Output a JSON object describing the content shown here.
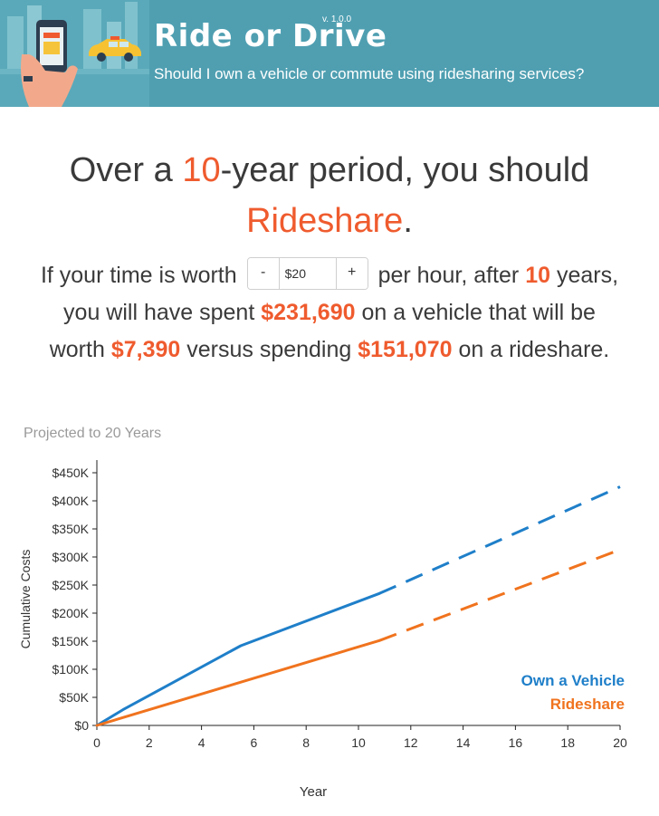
{
  "header": {
    "title": "Ride or Drive",
    "version": "v. 1.0.0",
    "subtitle": "Should I own a vehicle or commute using ridesharing services?"
  },
  "headline": {
    "prefix": "Over a ",
    "years": "10",
    "middle": "-year period, you should",
    "recommendation": "Rideshare",
    "suffix": "."
  },
  "summary": {
    "text1": "If your time is worth",
    "stepper": {
      "minus_label": "-",
      "value": "$20",
      "plus_label": "+"
    },
    "text2": "per hour, after",
    "years": "10",
    "text3": "years,",
    "text4": "you will have spent",
    "vehicle_spent": "$231,690",
    "text5": "on a vehicle that will be",
    "text6": "worth",
    "vehicle_worth": "$7,390",
    "text7": "versus spending",
    "rideshare_spent": "$151,070",
    "text8": "on a rideshare."
  },
  "colors": {
    "header_bg": "#4f9fb1",
    "accent": "#ef5b2e",
    "vehicle": "#1f7fc9",
    "rideshare": "#f0731e"
  },
  "chart_data": {
    "type": "line",
    "title": "Projected to 20 Years",
    "xlabel": "Year",
    "ylabel": "Cumulative Costs",
    "xlim": [
      0,
      20
    ],
    "ylim": [
      0,
      450000
    ],
    "x_ticks": [
      "0",
      "2",
      "4",
      "6",
      "8",
      "10",
      "12",
      "14",
      "16",
      "18",
      "20"
    ],
    "y_ticks": [
      "$0",
      "$50K",
      "$100K",
      "$150K",
      "$200K",
      "$250K",
      "$300K",
      "$350K",
      "$400K",
      "$450K"
    ],
    "legend_position": "bottom-right",
    "series": [
      {
        "name": "Own a Vehicle",
        "color": "#1f7fc9",
        "actual": [
          [
            0,
            0
          ],
          [
            1,
            28000
          ],
          [
            5.5,
            142000
          ],
          [
            10.8,
            235000
          ]
        ],
        "projected": [
          [
            10.8,
            235000
          ],
          [
            20,
            425000
          ]
        ]
      },
      {
        "name": "Rideshare",
        "color": "#f0731e",
        "actual": [
          [
            0,
            0
          ],
          [
            10.8,
            151070
          ]
        ],
        "projected": [
          [
            10.8,
            151070
          ],
          [
            20,
            313000
          ]
        ]
      }
    ]
  }
}
